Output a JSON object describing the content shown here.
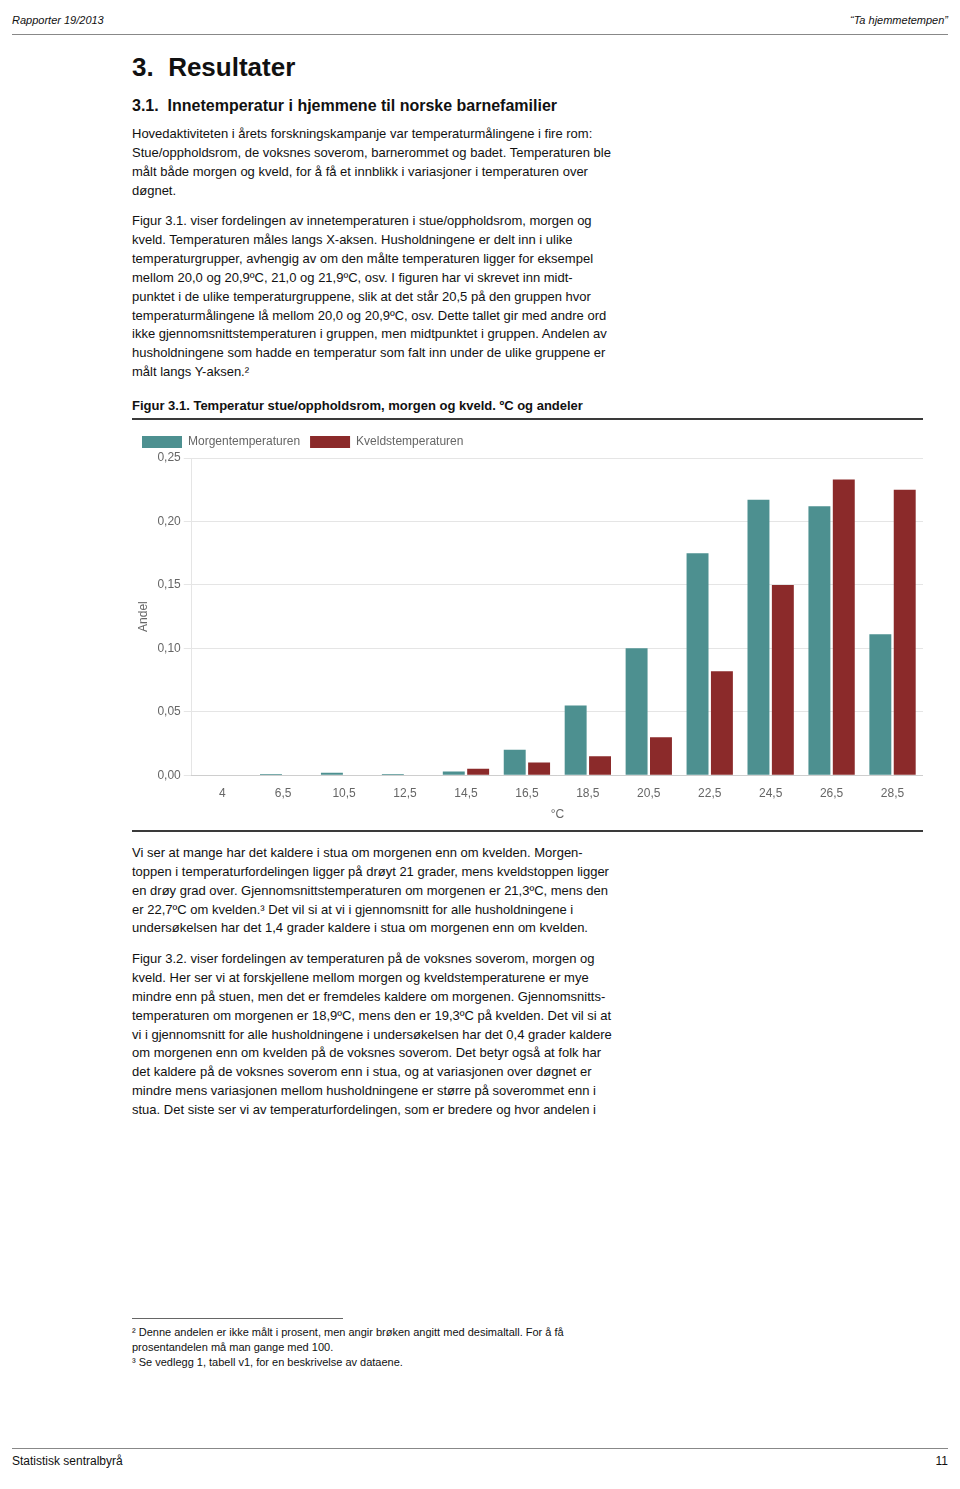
{
  "page": {
    "header_left": "Rapporter 19/2013",
    "header_right": "“Ta hjemmetempen”",
    "section_title": "3.  Resultater",
    "subsection_title": "3.1.  Innetemperatur i hjemmene til norske barnefamilier",
    "paragraphs_before": [
      "Hovedaktiviteten i årets forskningskampanje var temperaturmålingene i fire rom:\nStue/oppholdsrom, de voksnes soverom, barnerommet og badet. Temperaturen ble\nmålt både morgen og kveld, for å få et innblikk i variasjoner i temperaturen over\ndøgnet.",
      "Figur 3.1. viser fordelingen av innetemperaturen i stue/oppholdsrom, morgen og\nkveld. Temperaturen måles langs X-aksen. Husholdningene er delt inn i ulike\ntemperaturgrupper, avhengig av om den målte temperaturen ligger for eksempel\nmellom 20,0 og 20,9ºC, 21,0 og 21,9ºC, osv. I figuren har vi skrevet inn midt-\npunktet i de ulike temperaturgruppene, slik at det står 20,5 på den gruppen hvor\ntemperaturmålingene lå mellom 20,0 og 20,9ºC, osv. Dette tallet gir med andre ord\nikke gjennomsnittstemperaturen i gruppen, men midtpunktet i gruppen. Andelen av\nhusholdningene som hadde en temperatur som falt inn under de ulike gruppene er\nmålt langs Y-aksen.²"
    ],
    "paragraphs_after": [
      "Vi ser at mange har det kaldere i stua om morgenen enn om kvelden. Morgen-\ntoppen i temperaturfordelingen ligger på drøyt 21 grader, mens kveldstoppen ligger\nen drøy grad over. Gjennomsnittstemperaturen om morgenen er 21,3ºC, mens den\ner 22,7ºC om kvelden.³ Det vil si at vi i gjennomsnitt for alle husholdningene i\nundersøkelsen har det 1,4 grader kaldere i stua om morgenen enn om kvelden.",
      "Figur 3.2. viser fordelingen av temperaturen på de voksnes soverom, morgen og\nkveld. Her ser vi at forskjellene mellom morgen og kveldstemperaturene er mye\nmindre enn på stuen, men det er fremdeles kaldere om morgenen. Gjennomsnitts-\ntemperaturen om morgenen er 18,9ºC, mens den er 19,3ºC på kvelden. Det vil si at\nvi i gjennomsnitt for alle husholdningene i undersøkelsen har det 0,4 grader kaldere\nom morgenen enn om kvelden på de voksnes soverom. Det betyr også at folk har\ndet kaldere på de voksnes soverom enn i stua, og at variasjonen over døgnet er\nmindre mens variasjonen mellom husholdningene er større på soverommet enn i\nstua. Det siste ser vi av temperaturfordelingen, som er bredere og hvor andelen i"
    ],
    "footnotes": [
      "² Denne andelen er ikke målt i prosent, men angir brøken angitt med desimaltall. For å få",
      "prosentandelen må man gange med 100.",
      "³ Se vedlegg 1, tabell v1, for en beskrivelse av dataene."
    ],
    "footer": "Statistisk sentralbyrå",
    "page_number": "11"
  },
  "chart_data": {
    "type": "bar",
    "title": "Figur 3.1. Temperatur stue/oppholdsrom, morgen og kveld. ºC og andeler",
    "xlabel": "°C",
    "ylabel": "Andel",
    "categories": [
      "4",
      "6,5",
      "10,5",
      "12,5",
      "14,5",
      "16,5",
      "18,5",
      "20,5",
      "22,5",
      "24,5",
      "26,5",
      "28,5"
    ],
    "series": [
      {
        "name": "Morgentemperaturen",
        "color": "#4d9090",
        "values": [
          0.0,
          0.001,
          0.002,
          0.001,
          0.003,
          0.02,
          0.055,
          0.1,
          0.175,
          0.217,
          0.212,
          0.111
        ]
      },
      {
        "name": "Kveldstemperaturen",
        "color": "#8b2a2a",
        "values": [
          0.0,
          0.0,
          0.0,
          0.0,
          0.005,
          0.01,
          0.015,
          0.03,
          0.082,
          0.15,
          0.233,
          0.225
        ]
      }
    ],
    "ylim": [
      0,
      0.25
    ],
    "yticks": [
      {
        "value": 0,
        "label": "0,00"
      },
      {
        "value": 0.05,
        "label": "0,05"
      },
      {
        "value": 0.1,
        "label": "0,10"
      },
      {
        "value": 0.15,
        "label": "0,15"
      },
      {
        "value": 0.2,
        "label": "0,20"
      },
      {
        "value": 0.25,
        "label": "0,25"
      }
    ],
    "grid": "y",
    "legend": "upper left"
  }
}
